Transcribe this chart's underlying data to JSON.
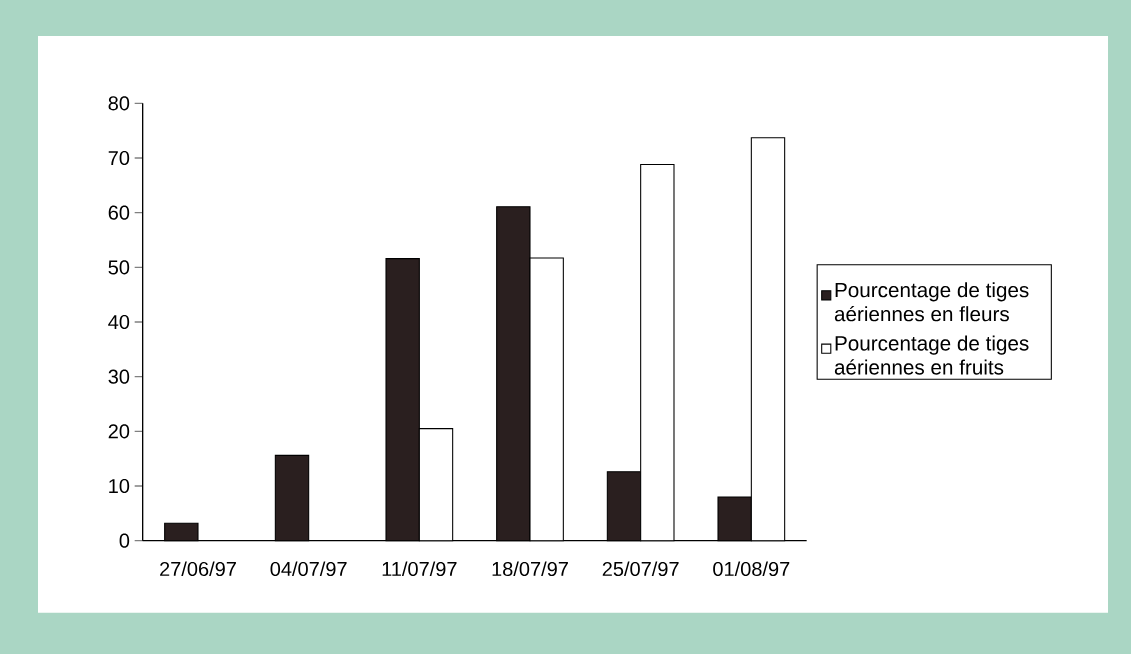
{
  "chart_data": {
    "type": "bar",
    "categories": [
      "27/06/97",
      "04/07/97",
      "11/07/97",
      "18/07/97",
      "25/07/97",
      "01/08/97"
    ],
    "series": [
      {
        "name": "Pourcentage de tiges aériennes en fleurs",
        "color": "#2a1f1f",
        "values": [
          3.2,
          15.6,
          51.6,
          61.1,
          12.6,
          8.0
        ]
      },
      {
        "name": "Pourcentage de tiges aériennes en fruits",
        "color": "#ffffff",
        "values": [
          null,
          null,
          20.5,
          51.7,
          68.8,
          73.7
        ]
      }
    ],
    "ylim": [
      0,
      80
    ],
    "yticks": [
      0,
      10,
      20,
      30,
      40,
      50,
      60,
      70,
      80
    ],
    "legend": "right",
    "grid": false
  }
}
